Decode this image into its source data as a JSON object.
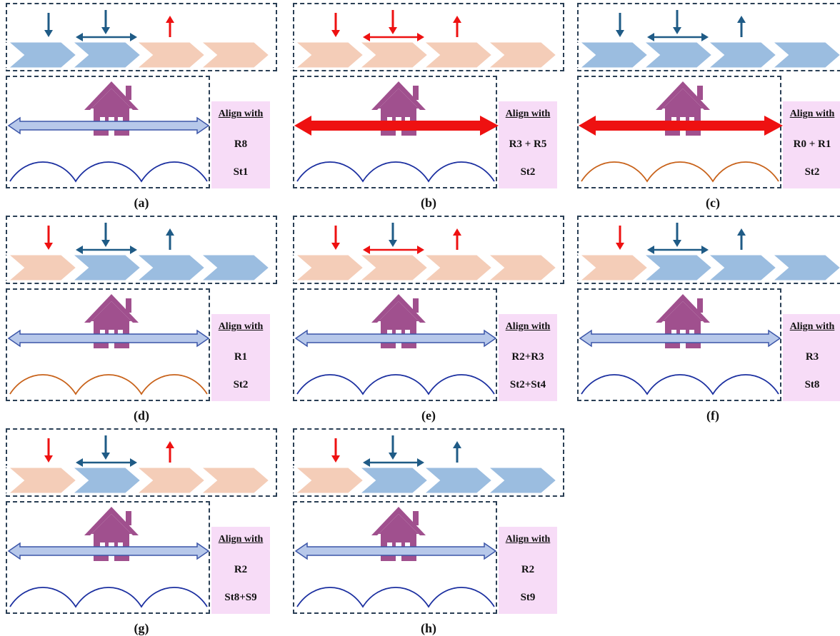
{
  "colors": {
    "blue_chevron": "#9bbde0",
    "peach_chevron": "#f4cdb8",
    "dark_arrow": "#1f5b86",
    "red_arrow": "#ee1111",
    "house": "#a0508e",
    "wave_blue": "#1b2fa0",
    "wave_orange": "#c8621a",
    "align_bg": "#f7dcf7"
  },
  "panels": [
    {
      "caption": "(a)",
      "align_header": "Align with",
      "rule": "R8",
      "strategy": "St1",
      "chevrons": [
        "blue",
        "blue",
        "peach",
        "peach"
      ],
      "arrow1": "dark",
      "arrow2": "dark",
      "arrow3": "red",
      "wide": "normal",
      "wave": "blue"
    },
    {
      "caption": "(b)",
      "align_header": "Align with",
      "rule": "R3 + R5",
      "strategy": "St2",
      "chevrons": [
        "peach",
        "peach",
        "peach",
        "peach"
      ],
      "arrow1": "red",
      "arrow2": "red",
      "arrow3": "red",
      "wide": "bold",
      "wave": "blue"
    },
    {
      "caption": "(c)",
      "align_header": "Align with",
      "rule": "R0 + R1",
      "strategy": "St2",
      "chevrons": [
        "blue",
        "blue",
        "blue",
        "blue"
      ],
      "arrow1": "dark",
      "arrow2": "dark",
      "arrow3": "dark",
      "wide": "bold",
      "wave": "orange"
    },
    {
      "caption": "(d)",
      "align_header": "Align with",
      "rule": "R1",
      "strategy": "St2",
      "chevrons": [
        "peach",
        "blue",
        "blue",
        "blue"
      ],
      "arrow1": "red",
      "arrow2": "dark",
      "arrow3": "dark",
      "wide": "normal",
      "wave": "orange"
    },
    {
      "caption": "(e)",
      "align_header": "Align with",
      "rule": "R2+R3",
      "strategy": "St2+St4",
      "chevrons": [
        "peach",
        "peach",
        "peach",
        "peach"
      ],
      "arrow1": "red",
      "arrow2": "dark",
      "arrow3": "red",
      "wide": "normal",
      "wave": "blue",
      "arrow2_red_h": true
    },
    {
      "caption": "(f)",
      "align_header": "Align with",
      "rule": "R3",
      "strategy": "St8",
      "chevrons": [
        "peach",
        "blue",
        "blue",
        "blue"
      ],
      "arrow1": "red",
      "arrow2": "dark",
      "arrow3": "dark",
      "wide": "normal",
      "wave": "blue"
    },
    {
      "caption": "(g)",
      "align_header": "Align with",
      "rule": "R2",
      "strategy": "St8+S9",
      "chevrons": [
        "peach",
        "blue",
        "peach",
        "peach"
      ],
      "arrow1": "red",
      "arrow2": "dark",
      "arrow3": "red",
      "wide": "normal",
      "wave": "blue"
    },
    {
      "caption": "(h)",
      "align_header": "Align with",
      "rule": "R2",
      "strategy": "St9",
      "chevrons": [
        "peach",
        "blue",
        "blue",
        "blue"
      ],
      "arrow1": "red",
      "arrow2": "dark",
      "arrow3": "dark",
      "wide": "normal",
      "wave": "blue"
    }
  ]
}
